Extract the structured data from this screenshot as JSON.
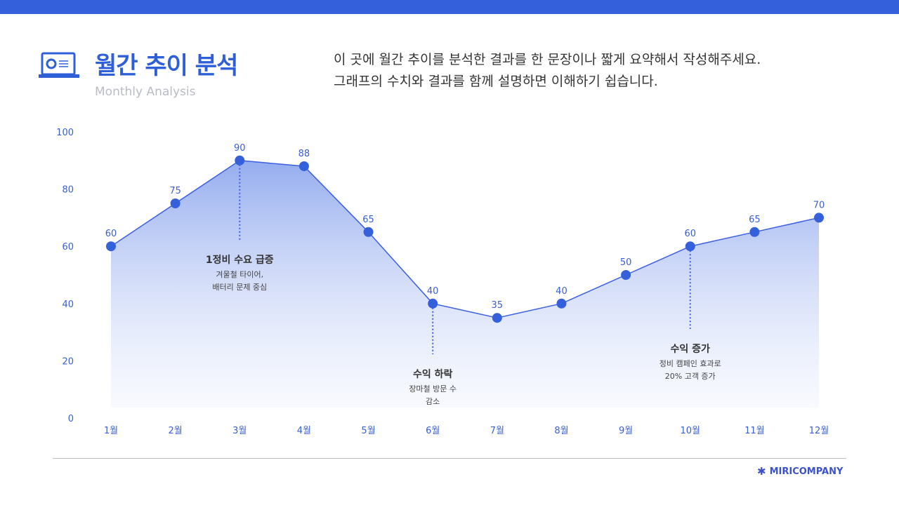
{
  "header": {
    "title": "월간 추이 분석",
    "subtitle": "Monthly Analysis",
    "description_line1": "이 곳에 월간 추이를 분석한 결과를 한 문장이나 짧게 요약해서 작성해주세요.",
    "description_line2": "그래프의 수치와 결과를 함께 설명하면 이해하기 쉽습니다.",
    "icon": "laptop-chart-icon"
  },
  "footer": {
    "brand": "MIRICOMPANY",
    "icon": "sparkle-icon"
  },
  "colors": {
    "accent": "#3560dc",
    "line": "#3a5fe0"
  },
  "chart_data": {
    "type": "area",
    "categories": [
      "1월",
      "2월",
      "3월",
      "4월",
      "5월",
      "6월",
      "7월",
      "8월",
      "9월",
      "10월",
      "11월",
      "12월"
    ],
    "values": [
      60,
      75,
      90,
      88,
      65,
      40,
      35,
      40,
      50,
      60,
      65,
      70
    ],
    "ylim": [
      0,
      100
    ],
    "yticks": [
      "0",
      "20",
      "40",
      "60",
      "80",
      "100"
    ],
    "grid": false,
    "annotations": [
      {
        "index": 2,
        "title": "1정비 수요 급증",
        "lines": [
          "겨울철 타이어,",
          "배터리 문제 중심"
        ]
      },
      {
        "index": 5,
        "title": "수익 하락",
        "lines": [
          "장마철 방문 수",
          "감소"
        ]
      },
      {
        "index": 9,
        "title": "수익 증가",
        "lines": [
          "정비 캠페인 효과로",
          "20% 고객 증가"
        ]
      }
    ]
  }
}
